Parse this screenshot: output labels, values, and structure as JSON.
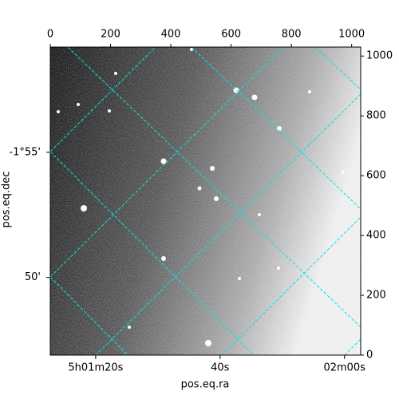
{
  "chart_data": {
    "type": "image",
    "xlabel": "pos.eq.ra",
    "ylabel": "pos.eq.dec",
    "xlim": [
      0,
      1030
    ],
    "ylim": [
      0,
      1030
    ],
    "xticks": [
      0,
      200,
      400,
      600,
      800,
      1000
    ],
    "yticks": [
      0,
      200,
      400,
      600,
      800,
      1000
    ],
    "ra_lim": [
      72.7,
      122.6
    ],
    "ra_ticks": [
      {
        "value": 80,
        "label": "5h01m20s"
      },
      {
        "value": 100,
        "label": "40s"
      },
      {
        "value": 120,
        "label": "02m00s"
      }
    ],
    "dec_lim": [
      -106.9,
      -119.2
    ],
    "dec_ticks": [
      {
        "value": -115,
        "label": "-1°55'"
      },
      {
        "value": -110,
        "label": "50'"
      }
    ],
    "grid_color": "#00e5e5"
  }
}
